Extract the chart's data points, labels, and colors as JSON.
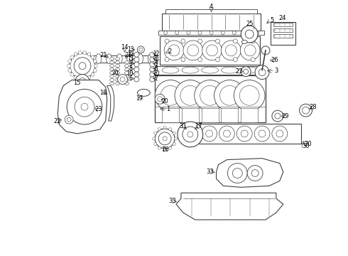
{
  "background_color": "#ffffff",
  "line_color": "#404040",
  "label_color": "#000000",
  "figsize": [
    4.9,
    3.6
  ],
  "dpi": 100
}
